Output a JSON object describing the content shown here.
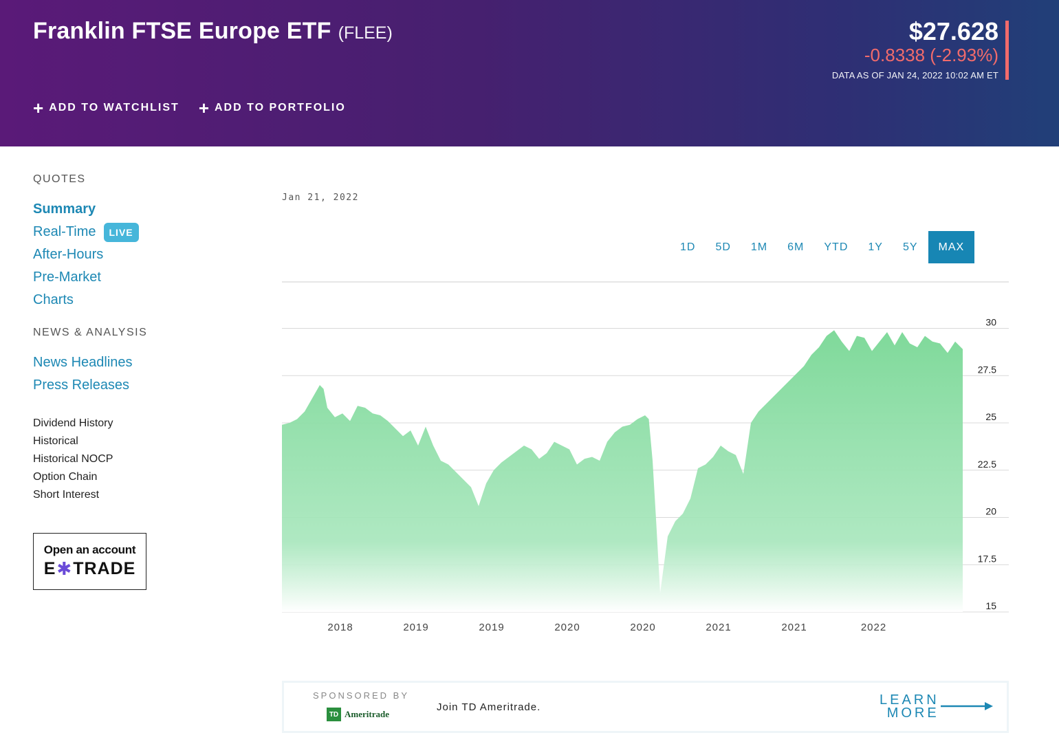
{
  "header": {
    "name": "Franklin FTSE Europe ETF",
    "ticker": "(FLEE)",
    "price": "$27.628",
    "change": "-0.8338 (-2.93%)",
    "as_of": "DATA AS OF JAN 24, 2022 10:02 AM ET",
    "change_color": "#f26b6b",
    "actions": {
      "watchlist": "ADD TO WATCHLIST",
      "portfolio": "ADD TO PORTFOLIO"
    }
  },
  "sidebar": {
    "quotes_heading": "QUOTES",
    "quotes": [
      {
        "label": "Summary",
        "active": true
      },
      {
        "label": "Real-Time",
        "badge": "LIVE"
      },
      {
        "label": "After-Hours"
      },
      {
        "label": "Pre-Market"
      },
      {
        "label": "Charts"
      }
    ],
    "news_heading": "NEWS & ANALYSIS",
    "news": [
      {
        "label": "News Headlines"
      },
      {
        "label": "Press Releases"
      }
    ],
    "more": [
      {
        "label": "Dividend History"
      },
      {
        "label": "Historical"
      },
      {
        "label": "Historical NOCP"
      },
      {
        "label": "Option Chain"
      },
      {
        "label": "Short Interest"
      }
    ],
    "ad": {
      "line1": "Open an account",
      "logo_left": "E",
      "logo_star": "✱",
      "logo_right": "TRADE"
    }
  },
  "chart_meta": {
    "date": "Jan 21, 2022",
    "ranges": [
      "1D",
      "5D",
      "1M",
      "6M",
      "YTD",
      "1Y",
      "5Y",
      "MAX"
    ],
    "active_range": "MAX"
  },
  "chart_data": {
    "type": "area",
    "fill_color": "#7fd99a",
    "ylim": [
      15,
      31.5
    ],
    "y_ticks": [
      "30",
      "27.5",
      "25",
      "22.5",
      "20",
      "17.5",
      "15"
    ],
    "x_tick_labels": [
      "2018",
      "2018",
      "2019",
      "2019",
      "2020",
      "2020",
      "2021",
      "2021",
      "2022"
    ],
    "x_label_positions": [
      0.5,
      1.5,
      2.5,
      3.5,
      4.5,
      5.5,
      6.5,
      7.5,
      8.55
    ],
    "x": [
      0.0,
      0.1,
      0.2,
      0.3,
      0.4,
      0.5,
      0.55,
      0.6,
      0.7,
      0.8,
      0.9,
      1.0,
      1.1,
      1.2,
      1.3,
      1.4,
      1.5,
      1.6,
      1.7,
      1.8,
      1.9,
      2.0,
      2.1,
      2.2,
      2.3,
      2.4,
      2.5,
      2.6,
      2.7,
      2.8,
      2.9,
      3.0,
      3.1,
      3.2,
      3.3,
      3.4,
      3.5,
      3.6,
      3.7,
      3.8,
      3.9,
      4.0,
      4.1,
      4.2,
      4.3,
      4.4,
      4.5,
      4.6,
      4.7,
      4.8,
      4.85,
      4.9,
      4.95,
      5.0,
      5.1,
      5.2,
      5.3,
      5.4,
      5.5,
      5.6,
      5.7,
      5.8,
      5.9,
      6.0,
      6.1,
      6.2,
      6.3,
      6.4,
      6.5,
      6.6,
      6.7,
      6.8,
      6.9,
      7.0,
      7.1,
      7.2,
      7.3,
      7.4,
      7.5,
      7.6,
      7.7,
      7.8,
      7.9,
      8.0,
      8.1,
      8.2,
      8.3,
      8.4,
      8.5,
      8.6,
      8.7,
      8.8,
      8.9,
      9.0
    ],
    "y": [
      24.9,
      25.0,
      25.2,
      25.6,
      26.3,
      27.0,
      26.8,
      25.8,
      25.3,
      25.5,
      25.1,
      25.9,
      25.8,
      25.5,
      25.4,
      25.1,
      24.7,
      24.3,
      24.6,
      23.8,
      24.8,
      23.8,
      23.0,
      22.8,
      22.4,
      22.0,
      21.6,
      20.6,
      21.8,
      22.5,
      22.9,
      23.2,
      23.5,
      23.8,
      23.6,
      23.1,
      23.4,
      24.0,
      23.8,
      23.6,
      22.8,
      23.1,
      23.2,
      23.0,
      24.0,
      24.5,
      24.8,
      24.9,
      25.2,
      25.4,
      25.2,
      23.0,
      19.6,
      16.0,
      19.0,
      19.8,
      20.2,
      21.0,
      22.6,
      22.8,
      23.2,
      23.8,
      23.5,
      23.3,
      22.3,
      25.0,
      25.6,
      26.0,
      26.4,
      26.8,
      27.2,
      27.6,
      28.0,
      28.6,
      29.0,
      29.6,
      29.9,
      29.3,
      28.8,
      29.6,
      29.5,
      28.8,
      29.3,
      29.8,
      29.1,
      29.8,
      29.2,
      29.0,
      29.6,
      29.3,
      29.2,
      28.7,
      29.3,
      28.9
    ],
    "xlabel": "",
    "ylabel": ""
  },
  "sponsor": {
    "by": "SPONSORED BY",
    "brand_box": "TD",
    "brand": "Ameritrade",
    "text": "Join TD Ameritrade.",
    "learn1": "LEARN",
    "learn2": "MORE"
  }
}
